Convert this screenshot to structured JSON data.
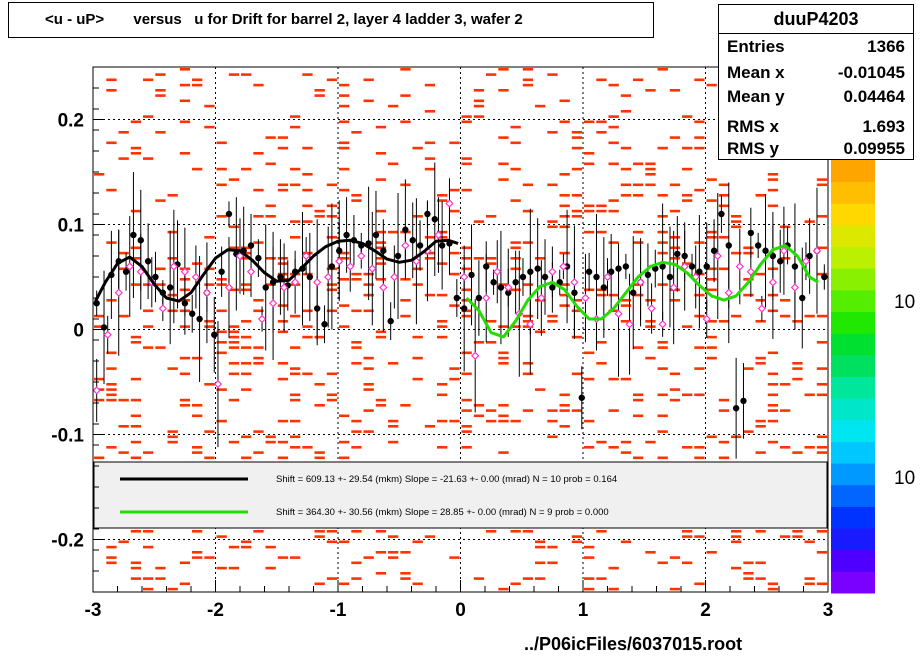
{
  "title": "<u - uP>       versus   u for Drift for barrel 2, layer 4 ladder 3, wafer 2",
  "stats": {
    "name": "duuP4203",
    "rows": [
      {
        "label": "Entries",
        "value": "1366"
      },
      {
        "label": "Mean x",
        "value": "-0.01045"
      },
      {
        "label": "Mean y",
        "value": "0.04464"
      },
      {
        "label": "RMS x",
        "value": "1.693"
      },
      {
        "label": "RMS y",
        "value": "0.09955"
      }
    ]
  },
  "footer": "../P06icFiles/6037015.root",
  "colors": {
    "background_cells": "#ff3300",
    "black_points": "#000000",
    "pink_markers": "#ff33cc",
    "fit_black": "#000000",
    "fit_green": "#22dd00",
    "legend_bg": "#f0f0f0"
  },
  "legend": {
    "entries": [
      {
        "text": "Shift =   609.13 +- 29.54 (mkm) Slope =   -21.63 +- 0.00 (mrad)  N = 10 prob = 0.164",
        "color": "#000000"
      },
      {
        "text": "Shift =   364.30 +- 30.56 (mkm) Slope =    28.85 +- 0.00 (mrad)  N = 9 prob = 0.000",
        "color": "#22dd00"
      }
    ]
  },
  "palette_labels": [
    "10",
    "10"
  ],
  "chart_data": {
    "type": "scatter",
    "title": "<u - uP>       versus   u for Drift for barrel 2, layer 4 ladder 3, wafer 2",
    "xlabel": "",
    "ylabel": "",
    "xlim": [
      -3,
      3
    ],
    "ylim": [
      -0.25,
      0.25
    ],
    "x_ticks": [
      -3,
      -2,
      -1,
      0,
      1,
      2,
      3
    ],
    "x_tick_labels": [
      "-3",
      "-2",
      "-1",
      "0",
      "1",
      "2",
      "3"
    ],
    "y_ticks": [
      -0.2,
      -0.1,
      0,
      0.1,
      0.2
    ],
    "y_tick_labels": [
      "-0.2",
      "-0.1",
      "0",
      "0.1",
      "0.2"
    ],
    "grid": true,
    "series": [
      {
        "marker": "filled-circle",
        "x": [
          -2.97,
          -2.91,
          -2.85,
          -2.79,
          -2.73,
          -2.67,
          -2.61,
          -2.55,
          -2.49,
          -2.43,
          -2.37,
          -2.31,
          -2.25,
          -2.19,
          -2.13,
          -2.07,
          -2.01,
          -1.95,
          -1.89,
          -1.83,
          -1.77,
          -1.71,
          -1.65,
          -1.59,
          -1.53,
          -1.47,
          -1.41,
          -1.35,
          -1.29,
          -1.23,
          -1.17,
          -1.11,
          -1.05,
          -0.99,
          -0.93,
          -0.87,
          -0.81,
          -0.75,
          -0.69,
          -0.63,
          -0.57,
          -0.51,
          -0.45,
          -0.39,
          -0.33,
          -0.27,
          -0.21,
          -0.15,
          -0.09,
          -0.03,
          0.03,
          0.09,
          0.15,
          0.21,
          0.27,
          0.33,
          0.39,
          0.45,
          0.51,
          0.57,
          0.63,
          0.69,
          0.75,
          0.81,
          0.87,
          0.93,
          0.99,
          1.05,
          1.11,
          1.17,
          1.23,
          1.29,
          1.35,
          1.41,
          1.47,
          1.53,
          1.59,
          1.65,
          1.71,
          1.77,
          1.83,
          1.89,
          1.95,
          2.01,
          2.07,
          2.13,
          2.19,
          2.25,
          2.31,
          2.37,
          2.43,
          2.49,
          2.55,
          2.61,
          2.67,
          2.73,
          2.79,
          2.85,
          2.91,
          2.97
        ],
        "y": [
          0.025,
          0.002,
          0.052,
          0.065,
          0.055,
          0.09,
          0.085,
          0.065,
          0.05,
          0.035,
          0.04,
          0.062,
          0.025,
          0.015,
          0.01,
          0.035,
          -0.005,
          0.055,
          0.11,
          0.072,
          0.075,
          0.08,
          0.068,
          0.04,
          0.045,
          0.05,
          0.042,
          0.055,
          0.058,
          0.05,
          0.02,
          0.005,
          0.06,
          0.075,
          0.09,
          0.085,
          0.08,
          0.082,
          0.09,
          0.075,
          0.008,
          0.07,
          0.095,
          0.085,
          0.08,
          0.11,
          0.105,
          0.08,
          0.082,
          0.03,
          0.02,
          0.052,
          0.03,
          0.06,
          0.045,
          0.04,
          0.035,
          0.045,
          0.05,
          0.055,
          0.058,
          0.05,
          0.04,
          0.045,
          0.06,
          0.035,
          -0.065,
          0.055,
          0.05,
          0.04,
          0.055,
          0.058,
          0.06,
          0.035,
          0.045,
          0.052,
          0.058,
          0.06,
          0.05,
          0.072,
          0.07,
          0.06,
          0.055,
          0.06,
          0.075,
          0.11,
          0.08,
          -0.075,
          -0.068,
          0.092,
          0.08,
          0.075,
          0.07,
          0.065,
          0.08,
          0.06,
          0.03,
          0.07,
          0.075,
          0.05
        ]
      },
      {
        "marker": "open-diamond",
        "x": [
          -2.97,
          -2.88,
          -2.79,
          -2.7,
          -2.61,
          -2.52,
          -2.43,
          -2.34,
          -2.25,
          -2.16,
          -2.07,
          -1.98,
          -1.89,
          -1.8,
          -1.71,
          -1.62,
          -1.53,
          -1.44,
          -1.35,
          -1.26,
          -1.17,
          -1.08,
          -0.99,
          -0.9,
          -0.81,
          -0.72,
          -0.63,
          -0.54,
          -0.45,
          -0.36,
          -0.27,
          -0.18,
          -0.09,
          0.03,
          0.12,
          0.21,
          0.3,
          0.39,
          0.48,
          0.57,
          0.66,
          0.75,
          0.84,
          0.93,
          1.02,
          1.11,
          1.2,
          1.29,
          1.38,
          1.47,
          1.56,
          1.65,
          1.74,
          1.83,
          1.92,
          2.01,
          2.1,
          2.19,
          2.28,
          2.37,
          2.46,
          2.55,
          2.64,
          2.73,
          2.82,
          2.91
        ],
        "y": [
          -0.058,
          -0.005,
          0.035,
          0.06,
          0.055,
          0.045,
          0.02,
          0.06,
          0.055,
          0.05,
          0.035,
          -0.052,
          0.04,
          0.07,
          0.055,
          0.01,
          0.025,
          0.04,
          0.045,
          0.07,
          0.045,
          0.05,
          0.065,
          0.06,
          0.07,
          0.058,
          0.04,
          0.05,
          0.08,
          0.065,
          0.075,
          0.09,
          0.12,
          0.05,
          -0.025,
          0.03,
          0.055,
          0.04,
          0.015,
          0.005,
          0.03,
          0.055,
          0.06,
          0.045,
          0.03,
          0.01,
          0.05,
          0.015,
          0.005,
          0.045,
          0.02,
          0.005,
          0.04,
          0.06,
          0.05,
          0.01,
          0.07,
          0.035,
          0.06,
          0.055,
          0.02,
          0.045,
          0.075,
          0.04,
          0.065,
          0.075
        ]
      }
    ],
    "fits": [
      {
        "name": "Shift =   609.13 +- 29.54 (mkm) Slope =   -21.63 +- 0.00 (mrad)  N = 10 prob = 0.164",
        "color": "#000000",
        "x": [
          -2.98,
          -2.9,
          -2.8,
          -2.7,
          -2.6,
          -2.5,
          -2.4,
          -2.3,
          -2.2,
          -2.1,
          -2.0,
          -1.9,
          -1.8,
          -1.7,
          -1.6,
          -1.5,
          -1.4,
          -1.3,
          -1.2,
          -1.1,
          -1.0,
          -0.9,
          -0.8,
          -0.7,
          -0.6,
          -0.5,
          -0.4,
          -0.3,
          -0.2,
          -0.1,
          -0.02
        ],
        "y": [
          0.027,
          0.045,
          0.063,
          0.069,
          0.06,
          0.043,
          0.03,
          0.027,
          0.035,
          0.052,
          0.068,
          0.076,
          0.075,
          0.066,
          0.054,
          0.046,
          0.047,
          0.058,
          0.07,
          0.079,
          0.084,
          0.085,
          0.082,
          0.075,
          0.067,
          0.064,
          0.066,
          0.074,
          0.084,
          0.085,
          0.082
        ]
      },
      {
        "name": "Shift =   364.30 +- 30.56 (mkm) Slope =    28.85 +- 0.00 (mrad)  N = 9 prob = 0.000",
        "color": "#22dd00",
        "x": [
          0.05,
          0.15,
          0.25,
          0.35,
          0.45,
          0.55,
          0.65,
          0.75,
          0.85,
          0.95,
          1.05,
          1.15,
          1.25,
          1.35,
          1.45,
          1.55,
          1.65,
          1.75,
          1.85,
          1.95,
          2.05,
          2.15,
          2.25,
          2.35,
          2.45,
          2.55,
          2.65,
          2.75,
          2.85,
          2.92
        ],
        "y": [
          0.03,
          0.018,
          -0.003,
          -0.007,
          0.008,
          0.028,
          0.041,
          0.045,
          0.038,
          0.022,
          0.01,
          0.01,
          0.02,
          0.035,
          0.05,
          0.06,
          0.064,
          0.062,
          0.054,
          0.042,
          0.032,
          0.028,
          0.032,
          0.045,
          0.062,
          0.076,
          0.08,
          0.07,
          0.05,
          0.045
        ]
      }
    ]
  }
}
